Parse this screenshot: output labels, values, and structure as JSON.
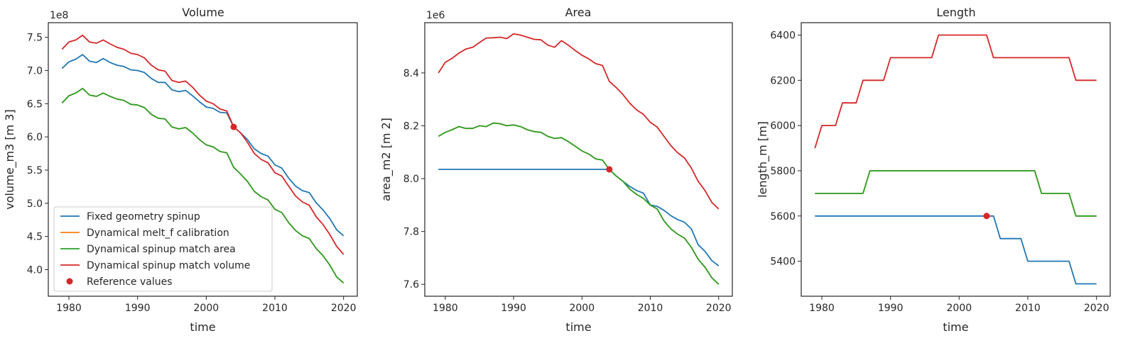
{
  "colors": {
    "fixed": "#1f77b4",
    "melt_f": "#ff7f0e",
    "match_area": "#2ca02c",
    "match_volume": "#d62728",
    "reference": "#d62728"
  },
  "legend": [
    {
      "key": "fixed",
      "label": "Fixed geometry spinup",
      "kind": "line"
    },
    {
      "key": "melt_f",
      "label": "Dynamical melt_f calibration",
      "kind": "line"
    },
    {
      "key": "match_area",
      "label": "Dynamical spinup match area",
      "kind": "line"
    },
    {
      "key": "match_volume",
      "label": "Dynamical spinup match volume",
      "kind": "line"
    },
    {
      "key": "reference",
      "label": "Reference values",
      "kind": "dot"
    }
  ],
  "chart_data": [
    {
      "type": "line",
      "title": "Volume",
      "xlabel": "time",
      "ylabel": "volume_m3 [m 3]",
      "multiplier": "1e8",
      "xlim": [
        1977,
        2022
      ],
      "ylim": [
        3.6,
        7.72
      ],
      "xticks": [
        1980,
        1990,
        2000,
        2010,
        2020
      ],
      "yticks": [
        4.0,
        4.5,
        5.0,
        5.5,
        6.0,
        6.5,
        7.0,
        7.5
      ],
      "ytick_labels": [
        "4.0",
        "4.5",
        "5.0",
        "5.5",
        "6.0",
        "6.5",
        "7.0",
        "7.5"
      ],
      "legend_position": "lower-left",
      "x": [
        1979,
        1980,
        1981,
        1982,
        1983,
        1984,
        1985,
        1986,
        1987,
        1988,
        1989,
        1990,
        1991,
        1992,
        1993,
        1994,
        1995,
        1996,
        1997,
        1998,
        1999,
        2000,
        2001,
        2002,
        2003,
        2004,
        2005,
        2006,
        2007,
        2008,
        2009,
        2010,
        2011,
        2012,
        2013,
        2014,
        2015,
        2016,
        2017,
        2018,
        2019,
        2020
      ],
      "series": [
        {
          "name": "Fixed geometry spinup",
          "key": "fixed",
          "values": [
            7.03,
            7.13,
            7.17,
            7.24,
            7.14,
            7.12,
            7.18,
            7.12,
            7.08,
            7.06,
            7.01,
            7.0,
            6.97,
            6.88,
            6.82,
            6.82,
            6.71,
            6.68,
            6.7,
            6.62,
            6.53,
            6.45,
            6.43,
            6.37,
            6.36,
            6.15,
            6.06,
            5.96,
            5.82,
            5.75,
            5.71,
            5.58,
            5.53,
            5.38,
            5.26,
            5.19,
            5.16,
            5.01,
            4.9,
            4.77,
            4.6,
            4.51
          ]
        },
        {
          "name": "Dynamical melt_f calibration",
          "key": "melt_f",
          "values": [
            6.51,
            6.62,
            6.66,
            6.73,
            6.63,
            6.61,
            6.66,
            6.61,
            6.57,
            6.55,
            6.49,
            6.48,
            6.44,
            6.34,
            6.28,
            6.27,
            6.15,
            6.12,
            6.14,
            6.06,
            5.96,
            5.88,
            5.85,
            5.78,
            5.76,
            5.54,
            5.44,
            5.33,
            5.18,
            5.1,
            5.05,
            4.91,
            4.86,
            4.71,
            4.59,
            4.51,
            4.47,
            4.32,
            4.21,
            4.07,
            3.89,
            3.8
          ]
        },
        {
          "name": "Dynamical spinup match area",
          "key": "match_area",
          "values": [
            6.51,
            6.62,
            6.66,
            6.73,
            6.63,
            6.61,
            6.66,
            6.61,
            6.57,
            6.55,
            6.49,
            6.48,
            6.44,
            6.34,
            6.28,
            6.27,
            6.15,
            6.12,
            6.14,
            6.06,
            5.96,
            5.88,
            5.85,
            5.78,
            5.76,
            5.54,
            5.44,
            5.33,
            5.18,
            5.1,
            5.05,
            4.91,
            4.86,
            4.71,
            4.59,
            4.51,
            4.47,
            4.32,
            4.21,
            4.07,
            3.89,
            3.8
          ]
        },
        {
          "name": "Dynamical spinup match volume",
          "key": "match_volume",
          "values": [
            7.32,
            7.43,
            7.46,
            7.53,
            7.43,
            7.41,
            7.46,
            7.4,
            7.35,
            7.32,
            7.26,
            7.24,
            7.19,
            7.08,
            7.01,
            6.99,
            6.85,
            6.82,
            6.84,
            6.75,
            6.63,
            6.54,
            6.5,
            6.42,
            6.39,
            6.15,
            6.06,
            5.92,
            5.75,
            5.66,
            5.61,
            5.46,
            5.41,
            5.26,
            5.11,
            5.02,
            4.97,
            4.8,
            4.68,
            4.53,
            4.35,
            4.23
          ]
        }
      ],
      "reference": {
        "x": 2004,
        "y": 6.15
      }
    },
    {
      "type": "line",
      "title": "Area",
      "xlabel": "time",
      "ylabel": "area_m2 [m 2]",
      "multiplier": "1e6",
      "xlim": [
        1977,
        2022
      ],
      "ylim": [
        7.555,
        8.59
      ],
      "xticks": [
        1980,
        1990,
        2000,
        2010,
        2020
      ],
      "yticks": [
        7.6,
        7.8,
        8.0,
        8.2,
        8.4
      ],
      "ytick_labels": [
        "7.6",
        "7.8",
        "8.0",
        "8.2",
        "8.4"
      ],
      "x": [
        1979,
        1980,
        1981,
        1982,
        1983,
        1984,
        1985,
        1986,
        1987,
        1988,
        1989,
        1990,
        1991,
        1992,
        1993,
        1994,
        1995,
        1996,
        1997,
        1998,
        1999,
        2000,
        2001,
        2002,
        2003,
        2004,
        2005,
        2006,
        2007,
        2008,
        2009,
        2010,
        2011,
        2012,
        2013,
        2014,
        2015,
        2016,
        2017,
        2018,
        2019,
        2020
      ],
      "series": [
        {
          "name": "Fixed geometry spinup",
          "key": "fixed",
          "values": [
            8.035,
            8.035,
            8.035,
            8.035,
            8.035,
            8.035,
            8.035,
            8.035,
            8.035,
            8.035,
            8.035,
            8.035,
            8.035,
            8.035,
            8.035,
            8.035,
            8.035,
            8.035,
            8.035,
            8.035,
            8.035,
            8.035,
            8.035,
            8.035,
            8.035,
            8.035,
            8.01,
            7.99,
            7.97,
            7.955,
            7.945,
            7.9,
            7.895,
            7.88,
            7.86,
            7.845,
            7.835,
            7.81,
            7.75,
            7.725,
            7.69,
            7.67
          ]
        },
        {
          "name": "Dynamical melt_f calibration",
          "key": "melt_f",
          "values": [
            8.16,
            8.175,
            8.185,
            8.197,
            8.19,
            8.19,
            8.2,
            8.197,
            8.21,
            8.208,
            8.2,
            8.203,
            8.197,
            8.185,
            8.178,
            8.175,
            8.16,
            8.152,
            8.155,
            8.14,
            8.123,
            8.105,
            8.093,
            8.075,
            8.07,
            8.035,
            8.01,
            7.99,
            7.96,
            7.94,
            7.925,
            7.9,
            7.885,
            7.84,
            7.81,
            7.79,
            7.775,
            7.74,
            7.695,
            7.665,
            7.625,
            7.6
          ]
        },
        {
          "name": "Dynamical spinup match area",
          "key": "match_area",
          "values": [
            8.16,
            8.175,
            8.185,
            8.197,
            8.19,
            8.19,
            8.2,
            8.197,
            8.21,
            8.208,
            8.2,
            8.203,
            8.197,
            8.185,
            8.178,
            8.175,
            8.16,
            8.152,
            8.155,
            8.14,
            8.123,
            8.105,
            8.093,
            8.075,
            8.07,
            8.035,
            8.01,
            7.99,
            7.96,
            7.94,
            7.925,
            7.9,
            7.885,
            7.84,
            7.81,
            7.79,
            7.775,
            7.74,
            7.695,
            7.665,
            7.625,
            7.6
          ]
        },
        {
          "name": "Dynamical spinup match volume",
          "key": "match_volume",
          "values": [
            8.4,
            8.44,
            8.455,
            8.475,
            8.49,
            8.497,
            8.515,
            8.532,
            8.533,
            8.535,
            8.53,
            8.548,
            8.543,
            8.535,
            8.527,
            8.525,
            8.505,
            8.497,
            8.522,
            8.505,
            8.485,
            8.467,
            8.453,
            8.435,
            8.428,
            8.368,
            8.345,
            8.318,
            8.285,
            8.26,
            8.243,
            8.213,
            8.195,
            8.16,
            8.125,
            8.098,
            8.078,
            8.04,
            7.99,
            7.955,
            7.91,
            7.885
          ]
        }
      ],
      "reference": {
        "x": 2004,
        "y": 8.035
      }
    },
    {
      "type": "line",
      "title": "Length",
      "xlabel": "time",
      "ylabel": "length_m [m]",
      "multiplier": "",
      "xlim": [
        1977,
        2022
      ],
      "ylim": [
        5245,
        6455
      ],
      "xticks": [
        1980,
        1990,
        2000,
        2010,
        2020
      ],
      "yticks": [
        5400,
        5600,
        5800,
        6000,
        6200,
        6400
      ],
      "ytick_labels": [
        "5400",
        "5600",
        "5800",
        "6000",
        "6200",
        "6400"
      ],
      "x": [
        1979,
        1980,
        1981,
        1982,
        1983,
        1984,
        1985,
        1986,
        1987,
        1988,
        1989,
        1990,
        1991,
        1992,
        1993,
        1994,
        1995,
        1996,
        1997,
        1998,
        1999,
        2000,
        2001,
        2002,
        2003,
        2004,
        2005,
        2006,
        2007,
        2008,
        2009,
        2010,
        2011,
        2012,
        2013,
        2014,
        2015,
        2016,
        2017,
        2018,
        2019,
        2020
      ],
      "series": [
        {
          "name": "Fixed geometry spinup",
          "key": "fixed",
          "values": [
            5600,
            5600,
            5600,
            5600,
            5600,
            5600,
            5600,
            5600,
            5600,
            5600,
            5600,
            5600,
            5600,
            5600,
            5600,
            5600,
            5600,
            5600,
            5600,
            5600,
            5600,
            5600,
            5600,
            5600,
            5600,
            5600,
            5600,
            5500,
            5500,
            5500,
            5500,
            5400,
            5400,
            5400,
            5400,
            5400,
            5400,
            5400,
            5300,
            5300,
            5300,
            5300
          ]
        },
        {
          "name": "Dynamical melt_f calibration",
          "key": "melt_f",
          "values": [
            5700,
            5700,
            5700,
            5700,
            5700,
            5700,
            5700,
            5700,
            5800,
            5800,
            5800,
            5800,
            5800,
            5800,
            5800,
            5800,
            5800,
            5800,
            5800,
            5800,
            5800,
            5800,
            5800,
            5800,
            5800,
            5800,
            5800,
            5800,
            5800,
            5800,
            5800,
            5800,
            5800,
            5700,
            5700,
            5700,
            5700,
            5700,
            5600,
            5600,
            5600,
            5600
          ]
        },
        {
          "name": "Dynamical spinup match area",
          "key": "match_area",
          "values": [
            5700,
            5700,
            5700,
            5700,
            5700,
            5700,
            5700,
            5700,
            5800,
            5800,
            5800,
            5800,
            5800,
            5800,
            5800,
            5800,
            5800,
            5800,
            5800,
            5800,
            5800,
            5800,
            5800,
            5800,
            5800,
            5800,
            5800,
            5800,
            5800,
            5800,
            5800,
            5800,
            5800,
            5700,
            5700,
            5700,
            5700,
            5700,
            5600,
            5600,
            5600,
            5600
          ]
        },
        {
          "name": "Dynamical spinup match volume",
          "key": "match_volume",
          "values": [
            5900,
            6000,
            6000,
            6000,
            6100,
            6100,
            6100,
            6200,
            6200,
            6200,
            6200,
            6300,
            6300,
            6300,
            6300,
            6300,
            6300,
            6300,
            6400,
            6400,
            6400,
            6400,
            6400,
            6400,
            6400,
            6400,
            6300,
            6300,
            6300,
            6300,
            6300,
            6300,
            6300,
            6300,
            6300,
            6300,
            6300,
            6300,
            6200,
            6200,
            6200,
            6200
          ]
        }
      ],
      "reference": {
        "x": 2004,
        "y": 5600
      }
    }
  ]
}
